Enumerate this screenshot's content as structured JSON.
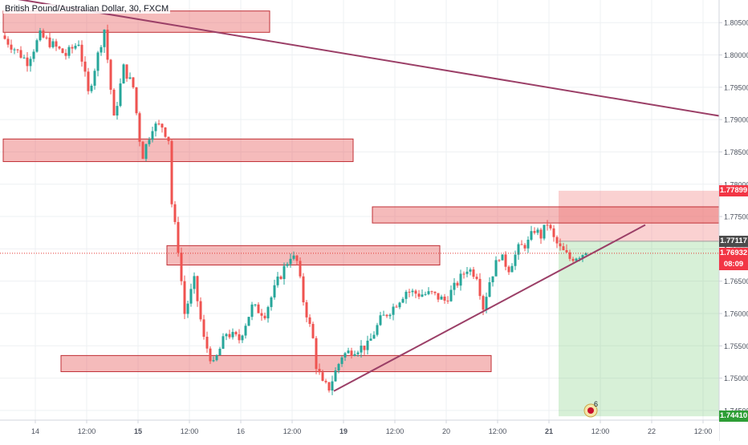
{
  "symbol": {
    "title": "British Pound/Australian Dollar, 30, FXCM"
  },
  "chart_data": {
    "type": "candlestick",
    "title": "British Pound/Australian Dollar, 30, FXCM",
    "y_range": [
      1.7435,
      1.8085
    ],
    "y_ticks": [
      {
        "value": 1.805,
        "label": "1.80500"
      },
      {
        "value": 1.8,
        "label": "1.80000"
      },
      {
        "value": 1.795,
        "label": "1.79500"
      },
      {
        "value": 1.79,
        "label": "1.79000"
      },
      {
        "value": 1.785,
        "label": "1.78500"
      },
      {
        "value": 1.78,
        "label": "1.78000"
      },
      {
        "value": 1.775,
        "label": "1.77500"
      },
      {
        "value": 1.77,
        "label": "1.77000"
      },
      {
        "value": 1.765,
        "label": "1.76500"
      },
      {
        "value": 1.76,
        "label": "1.76000"
      },
      {
        "value": 1.755,
        "label": "1.75500"
      },
      {
        "value": 1.75,
        "label": "1.75000"
      },
      {
        "value": 1.745,
        "label": "1.74500"
      }
    ],
    "x_range": [
      0,
      214
    ],
    "x_ticks": [
      {
        "bar": 10,
        "label": "14",
        "bold": false
      },
      {
        "bar": 26,
        "label": "12:00",
        "bold": false
      },
      {
        "bar": 42,
        "label": "15",
        "bold": true
      },
      {
        "bar": 58,
        "label": "12:00",
        "bold": false
      },
      {
        "bar": 74,
        "label": "16",
        "bold": false
      },
      {
        "bar": 90,
        "label": "12:00",
        "bold": false
      },
      {
        "bar": 106,
        "label": "19",
        "bold": true
      },
      {
        "bar": 122,
        "label": "12:00",
        "bold": false
      },
      {
        "bar": 138,
        "label": "20",
        "bold": false
      },
      {
        "bar": 154,
        "label": "12:00",
        "bold": false
      },
      {
        "bar": 170,
        "label": "21",
        "bold": true
      },
      {
        "bar": 186,
        "label": "12:00",
        "bold": false
      },
      {
        "bar": 202,
        "label": "22",
        "bold": false
      },
      {
        "bar": 218,
        "label": "12:00",
        "bold": false
      }
    ],
    "candle_count": 182,
    "anchors": [
      [
        0,
        1.803
      ],
      [
        4,
        1.801
      ],
      [
        8,
        1.799
      ],
      [
        12,
        1.803
      ],
      [
        16,
        1.8015
      ],
      [
        20,
        1.8
      ],
      [
        24,
        1.802
      ],
      [
        27,
        1.794
      ],
      [
        32,
        1.804
      ],
      [
        35,
        1.79
      ],
      [
        38,
        1.798
      ],
      [
        41,
        1.795
      ],
      [
        43,
        1.787
      ],
      [
        44,
        1.7845
      ],
      [
        47,
        1.789
      ],
      [
        50,
        1.789
      ],
      [
        52,
        1.787
      ],
      [
        53,
        1.777
      ],
      [
        55,
        1.77
      ],
      [
        57,
        1.76
      ],
      [
        60,
        1.765
      ],
      [
        63,
        1.756
      ],
      [
        66,
        1.752
      ],
      [
        70,
        1.757
      ],
      [
        74,
        1.756
      ],
      [
        78,
        1.761
      ],
      [
        82,
        1.76
      ],
      [
        86,
        1.765
      ],
      [
        90,
        1.769
      ],
      [
        92,
        1.768
      ],
      [
        94,
        1.762
      ],
      [
        97,
        1.756
      ],
      [
        98,
        1.752
      ],
      [
        100,
        1.749
      ],
      [
        102,
        1.7485
      ],
      [
        104,
        1.751
      ],
      [
        106,
        1.7535
      ],
      [
        110,
        1.7545
      ],
      [
        114,
        1.755
      ],
      [
        118,
        1.759
      ],
      [
        122,
        1.761
      ],
      [
        126,
        1.7635
      ],
      [
        130,
        1.763
      ],
      [
        134,
        1.763
      ],
      [
        138,
        1.762
      ],
      [
        141,
        1.764
      ],
      [
        145,
        1.767
      ],
      [
        148,
        1.766
      ],
      [
        150,
        1.761
      ],
      [
        152,
        1.765
      ],
      [
        155,
        1.769
      ],
      [
        158,
        1.767
      ],
      [
        161,
        1.77
      ],
      [
        164,
        1.771
      ],
      [
        166,
        1.773
      ],
      [
        168,
        1.772
      ],
      [
        170,
        1.774
      ],
      [
        172,
        1.7715
      ],
      [
        174,
        1.77
      ],
      [
        177,
        1.7685
      ],
      [
        181,
        1.7693
      ]
    ],
    "zones": [
      {
        "bar_from": 0,
        "bar_to": 83,
        "y_top": 1.8068,
        "y_bottom": 1.8035
      },
      {
        "bar_from": 0,
        "bar_to": 109,
        "y_top": 1.787,
        "y_bottom": 1.7835
      },
      {
        "bar_from": 115,
        "bar_to": 230,
        "y_top": 1.7765,
        "y_bottom": 1.774
      },
      {
        "bar_from": 51,
        "bar_to": 136,
        "y_top": 1.7705,
        "y_bottom": 1.7675
      },
      {
        "bar_from": 18,
        "bar_to": 152,
        "y_top": 1.7535,
        "y_bottom": 1.751
      }
    ],
    "trendlines": [
      {
        "bar_from": 0,
        "y_from": 1.809,
        "bar_to": 230,
        "y_to": 1.79
      },
      {
        "bar_from": 103,
        "y_from": 1.748,
        "bar_to": 200,
        "y_to": 1.7737
      }
    ],
    "position": {
      "bar_from": 173,
      "bar_to": 230,
      "stop": 1.77899,
      "entry": 1.77117,
      "target": 1.7441
    },
    "price_labels": [
      {
        "value": 1.77899,
        "label": "1.77899",
        "kind": "stop"
      },
      {
        "value": 1.77117,
        "label": "1.77117",
        "kind": "entry"
      },
      {
        "value": 1.76932,
        "label": "1.76932",
        "kind": "current"
      },
      {
        "value": 1.76932,
        "label": "08:09",
        "kind": "timer"
      },
      {
        "value": 1.7441,
        "label": "1.74410",
        "kind": "target"
      }
    ],
    "current_price": 1.76932,
    "event_marker": {
      "bar": 183,
      "label": "6"
    }
  },
  "colors": {
    "up": "#26a69a",
    "down": "#ef5350",
    "zone_fill": "rgba(232,93,93,0.42)",
    "zone_border": "#c02f35",
    "trendline": "#9b3f67",
    "stop_fill": "rgba(244,146,146,0.42)",
    "target_fill": "rgba(110,200,110,0.28)",
    "current_line": "#e53935",
    "entry_tag": "#4c4c4c",
    "stop_tag": "#f23645",
    "target_tag": "#2e9e36",
    "axis_text": "#4c525e",
    "gridline": "#eef0f3",
    "axis_line": "#d1d4dc"
  }
}
